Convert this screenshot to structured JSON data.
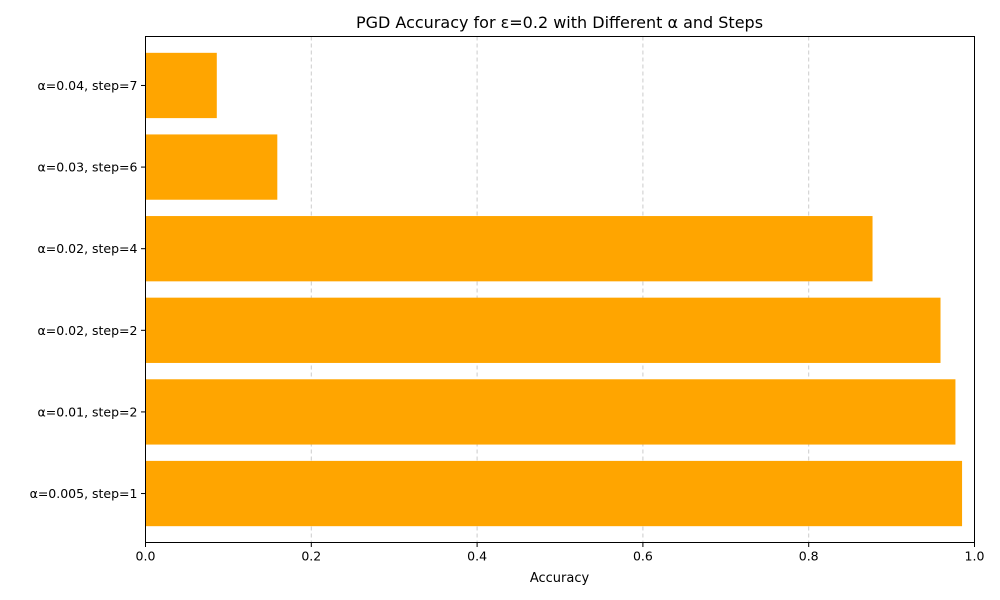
{
  "chart_data": {
    "type": "bar",
    "orientation": "horizontal",
    "title": "PGD Accuracy for ε=0.2 with Different α and Steps",
    "xlabel": "Accuracy",
    "ylabel": "",
    "categories": [
      "α=0.005, step=1",
      "α=0.01, step=2",
      "α=0.02, step=2",
      "α=0.02, step=4",
      "α=0.03, step=6",
      "α=0.04, step=7"
    ],
    "values": [
      0.985,
      0.977,
      0.959,
      0.877,
      0.159,
      0.086
    ],
    "xlim": [
      0,
      1.0
    ],
    "xticks": [
      "0.0",
      "0.2",
      "0.4",
      "0.6",
      "0.8",
      "1.0"
    ],
    "xtick_values": [
      0,
      0.2,
      0.4,
      0.6,
      0.8,
      1.0
    ],
    "grid": "x-dashed",
    "bar_color": "#ffa500",
    "grid_color": "#cccccc"
  }
}
